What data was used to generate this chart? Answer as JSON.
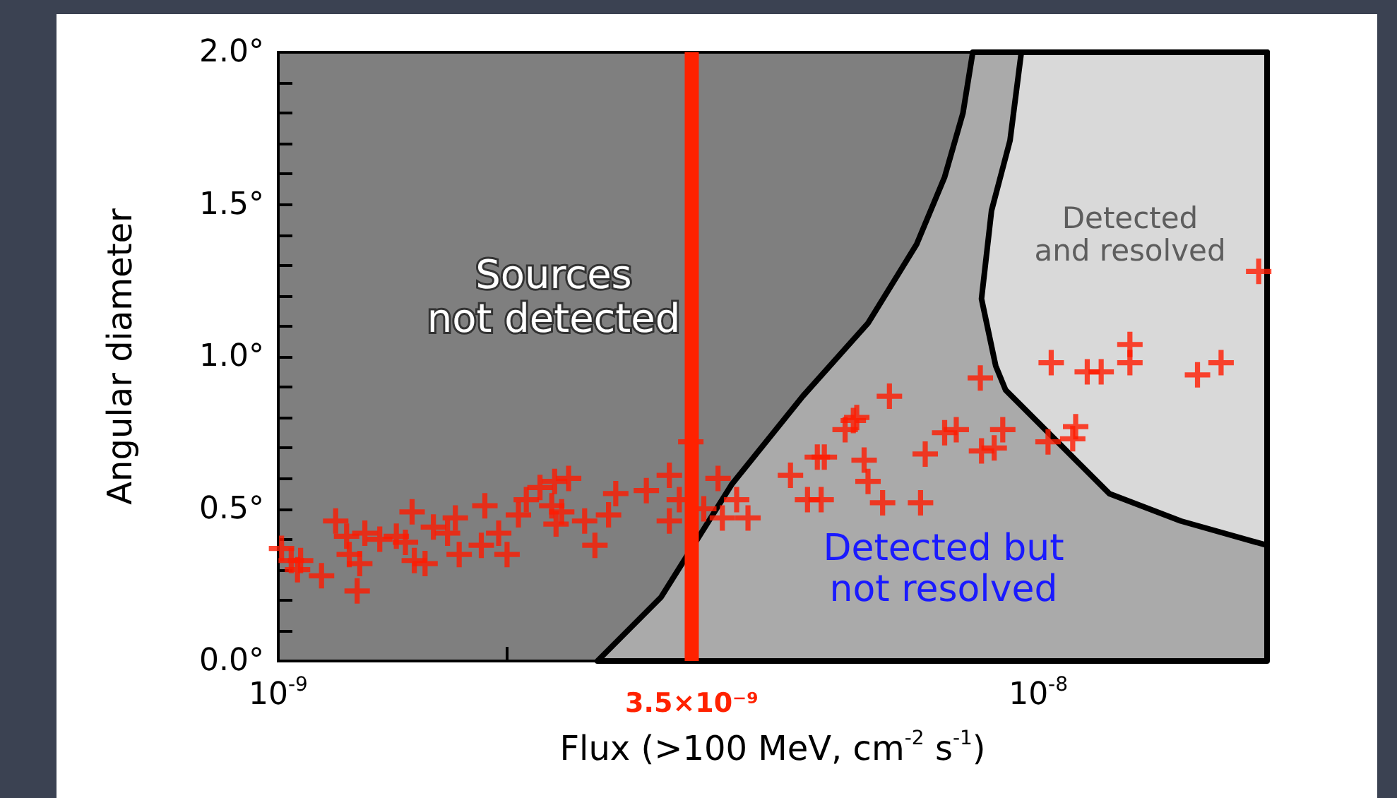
{
  "chart_data": {
    "type": "scatter",
    "xlabel": "Flux (>100 MeV, cm$^{-2}$ s$^{-1}$)",
    "ylabel": "Angular diameter",
    "log": "x",
    "xlim": [
      1e-09,
      2e-08
    ],
    "xticks": [
      {
        "value": 1e-09,
        "label": "10$^{-9}$"
      },
      {
        "value": 2e-09,
        "label": null
      },
      {
        "value": 3e-09,
        "label": null
      },
      {
        "value": 4e-09,
        "label": null
      },
      {
        "value": 5e-09,
        "label": null
      },
      {
        "value": 6e-09,
        "label": null
      },
      {
        "value": 7e-09,
        "label": null
      },
      {
        "value": 8e-09,
        "label": null
      },
      {
        "value": 9e-09,
        "label": null
      },
      {
        "value": 1e-08,
        "label": "10$^{-8}$"
      },
      {
        "value": 2e-08,
        "label": null
      }
    ],
    "ylim": [
      0,
      2
    ],
    "yticks": [
      {
        "value": 0,
        "label": "0.0°"
      },
      {
        "value": 0.1,
        "label": null
      },
      {
        "value": 0.2,
        "label": null
      },
      {
        "value": 0.3,
        "label": null
      },
      {
        "value": 0.4,
        "label": null
      },
      {
        "value": 0.5,
        "label": "0.5°"
      },
      {
        "value": 0.6,
        "label": null
      },
      {
        "value": 0.7,
        "label": null
      },
      {
        "value": 0.8,
        "label": null
      },
      {
        "value": 0.9,
        "label": null
      },
      {
        "value": 1.0,
        "label": "1.0°"
      },
      {
        "value": 1.1,
        "label": null
      },
      {
        "value": 1.2,
        "label": null
      },
      {
        "value": 1.3,
        "label": null
      },
      {
        "value": 1.4,
        "label": null
      },
      {
        "value": 1.5,
        "label": "1.5°"
      },
      {
        "value": 1.6,
        "label": null
      },
      {
        "value": 1.7,
        "label": null
      },
      {
        "value": 1.8,
        "label": null
      },
      {
        "value": 1.9,
        "label": null
      },
      {
        "value": 2.0,
        "label": "2.0°"
      }
    ],
    "grid": false,
    "marker": "cross",
    "series": [
      {
        "type": "area",
        "color": "#aaaaaa",
        "line_style": "solid",
        "marker": "none",
        "x": [
          2.63e-09,
          3.19e-09,
          3.95e-09,
          4.9e-09,
          5.97e-09,
          6.92e-09,
          7.53e-09,
          7.96e-09,
          8.2e-09,
          2e-08,
          2e-08
        ],
        "values": [
          0,
          0.21,
          0.58,
          0.87,
          1.11,
          1.37,
          1.59,
          1.8,
          2.0,
          2.0,
          0
        ]
      },
      {
        "type": "area",
        "color": "#d9d9d9",
        "line_style": "solid",
        "marker": "none",
        "x": [
          9.5e-09,
          9.18e-09,
          8.68e-09,
          8.42e-09,
          8.79e-09,
          9.06e-09,
          1.08e-08,
          1.24e-08,
          1.54e-08,
          2e-08,
          2e-08
        ],
        "values": [
          2.0,
          1.71,
          1.48,
          1.19,
          0.97,
          0.89,
          0.7,
          0.55,
          0.46,
          0.38,
          2.0
        ]
      },
      {
        "color": "#ff1a00",
        "x": [
          1.01e-09,
          1.04e-09,
          1.07e-09,
          1.06e-09,
          1.14e-09,
          1.19e-09,
          1.23e-09,
          1.24e-09,
          1.27e-09,
          1.3e-09,
          1.28e-09,
          1.36e-09,
          1.43e-09,
          1.47e-09,
          1.5e-09,
          1.51e-09,
          1.56e-09,
          1.6e-09,
          1.67e-09,
          1.71e-09,
          1.73e-09,
          1.87e-09,
          1.85e-09,
          1.95e-09,
          2e-09,
          2.07e-09,
          2.12e-09,
          2.21e-09,
          2.31e-09,
          2.41e-09,
          2.29e-09,
          2.36e-09,
          2.32e-09,
          2.53e-09,
          2.61e-09,
          2.72e-09,
          2.78e-09,
          3.49e-09,
          3.27e-09,
          3.05e-09,
          3.37e-09,
          3.63e-09,
          3.79e-09,
          3.27e-09,
          3.84e-09,
          4.01e-09,
          4.15e-09,
          4.72e-09,
          5.12e-09,
          4.97e-09,
          5.18e-09,
          5.9e-09,
          5.97e-09,
          6.24e-09,
          7e-09,
          7.1e-09,
          7.53e-09,
          5.71e-09,
          5.57e-09,
          6.37e-09,
          5.77e-09,
          5.23e-09,
          7.8e-09,
          8.42e-09,
          8.75e-09,
          8.98e-09,
          8.39e-09,
          1.03e-08,
          1.11e-08,
          1.12e-08,
          1.04e-08,
          1.16e-08,
          1.21e-08,
          1.32e-08,
          1.32e-08,
          1.62e-08,
          1.74e-08,
          1.95e-08
        ],
        "values": [
          0.37,
          0.33,
          0.33,
          0.3,
          0.28,
          0.46,
          0.41,
          0.35,
          0.23,
          0.42,
          0.32,
          0.4,
          0.41,
          0.39,
          0.49,
          0.33,
          0.32,
          0.44,
          0.42,
          0.47,
          0.35,
          0.51,
          0.38,
          0.42,
          0.35,
          0.48,
          0.53,
          0.57,
          0.59,
          0.6,
          0.51,
          0.49,
          0.45,
          0.46,
          0.38,
          0.48,
          0.55,
          0.72,
          0.61,
          0.56,
          0.53,
          0.5,
          0.6,
          0.46,
          0.47,
          0.53,
          0.47,
          0.61,
          0.67,
          0.53,
          0.53,
          0.66,
          0.59,
          0.52,
          0.52,
          0.68,
          0.75,
          0.79,
          0.76,
          0.87,
          0.8,
          0.67,
          0.76,
          0.69,
          0.7,
          0.76,
          0.93,
          0.72,
          0.73,
          0.77,
          0.98,
          0.95,
          0.95,
          1.04,
          0.98,
          0.94,
          0.98,
          1.28
        ]
      }
    ],
    "ref_lines": [
      {
        "axis": "x",
        "value": 3.5e-09,
        "label": "3.5×10⁻⁹",
        "color": "#ff2200"
      }
    ],
    "annotations": [
      "Sources\nnot detected",
      "Detected\nand resolved",
      "Detected but\nnot resolved"
    ]
  }
}
